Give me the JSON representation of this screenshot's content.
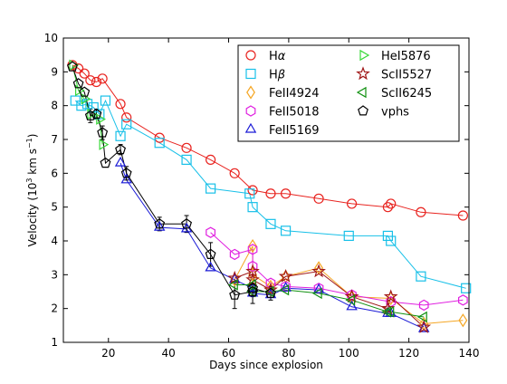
{
  "chart_data": {
    "type": "line",
    "title": "",
    "xlabel": "Days since explosion",
    "ylabel": "Velocity (10",
    "ylabel_exp": "3",
    "ylabel_unit": " km s",
    "ylabel_unit_exp": "−1",
    "ylabel_close": ")",
    "xlim": [
      5,
      140
    ],
    "ylim": [
      1,
      10
    ],
    "xticks": [
      20,
      40,
      60,
      80,
      100,
      120,
      140
    ],
    "yticks": [
      1,
      2,
      3,
      4,
      5,
      6,
      7,
      8,
      9,
      10
    ],
    "grid": false,
    "legend_placement": "top-right",
    "series": [
      {
        "name": "Hα",
        "label_main": "H",
        "label_greek": "α",
        "marker": "circle",
        "color": "#e8231f",
        "open": true,
        "x": [
          8,
          10,
          12,
          14,
          16,
          18,
          24,
          26,
          37,
          46,
          54,
          62,
          68,
          74,
          79,
          90,
          101,
          113,
          114,
          124,
          138
        ],
        "y": [
          9.2,
          9.1,
          8.95,
          8.75,
          8.7,
          8.8,
          8.05,
          7.65,
          7.05,
          6.75,
          6.4,
          6.0,
          5.5,
          5.4,
          5.4,
          5.25,
          5.1,
          5.0,
          5.1,
          4.85,
          4.75
        ]
      },
      {
        "name": "Hβ",
        "label_main": "H",
        "label_greek": "β",
        "marker": "square",
        "color": "#18c0e8",
        "open": true,
        "x": [
          9,
          11,
          13,
          15,
          17,
          19,
          24,
          26,
          37,
          46,
          54,
          67,
          68,
          74,
          79,
          100,
          113,
          114,
          124,
          139
        ],
        "y": [
          8.15,
          8.0,
          8.05,
          7.95,
          7.75,
          8.15,
          7.1,
          7.45,
          6.9,
          6.4,
          5.55,
          5.4,
          5.0,
          4.5,
          4.3,
          4.15,
          4.15,
          4.0,
          2.95,
          2.6
        ]
      },
      {
        "name": "FeII4924",
        "label_main": "FeII4924",
        "label_greek": "",
        "marker": "diamond",
        "color": "#f5a623",
        "open": true,
        "x": [
          62,
          68,
          68,
          74,
          79,
          90,
          101,
          114,
          125,
          138
        ],
        "y": [
          2.85,
          3.85,
          3.0,
          2.65,
          2.95,
          3.2,
          2.35,
          2.3,
          1.55,
          1.65
        ]
      },
      {
        "name": "FeII5018",
        "label_main": "FeII5018",
        "label_greek": "",
        "marker": "hexagon",
        "color": "#e020e0",
        "open": true,
        "x": [
          54,
          62,
          68,
          68,
          74,
          79,
          90,
          101,
          114,
          125,
          138
        ],
        "y": [
          4.25,
          3.6,
          3.75,
          3.25,
          2.75,
          2.65,
          2.6,
          2.4,
          2.2,
          2.1,
          2.25
        ]
      },
      {
        "name": "FeII5169",
        "label_main": "FeII5169",
        "label_greek": "",
        "marker": "triangle-up",
        "color": "#1a1ad6",
        "open": true,
        "x": [
          24,
          26,
          37,
          46,
          54,
          62,
          68,
          68,
          74,
          79,
          90,
          101,
          113,
          114,
          125
        ],
        "y": [
          6.3,
          5.8,
          4.4,
          4.35,
          3.2,
          2.85,
          2.6,
          2.45,
          2.4,
          2.6,
          2.55,
          2.05,
          1.85,
          1.85,
          1.4
        ]
      },
      {
        "name": "HeI5876",
        "label_main": "HeI5876",
        "label_greek": "",
        "marker": "triangle-right",
        "color": "#38d838",
        "open": true,
        "x": [
          8,
          10,
          12,
          14,
          17,
          18
        ],
        "y": [
          9.2,
          8.45,
          8.2,
          7.75,
          7.6,
          6.85
        ]
      },
      {
        "name": "ScII5527",
        "label_main": "ScII5527",
        "label_greek": "",
        "marker": "star",
        "color": "#a01818",
        "open": true,
        "x": [
          62,
          68,
          68,
          74,
          79,
          90,
          101,
          113,
          114,
          125
        ],
        "y": [
          2.9,
          3.1,
          2.85,
          2.55,
          2.95,
          3.1,
          2.35,
          2.0,
          2.35,
          1.45
        ]
      },
      {
        "name": "ScII6245",
        "label_main": "ScII6245",
        "label_greek": "",
        "marker": "triangle-left",
        "color": "#109010",
        "open": true,
        "x": [
          62,
          68,
          68,
          74,
          79,
          90,
          101,
          113,
          114,
          125
        ],
        "y": [
          2.7,
          2.7,
          2.5,
          2.5,
          2.55,
          2.45,
          2.25,
          1.9,
          1.9,
          1.75
        ]
      },
      {
        "name": "vphs",
        "label_main": "vphs",
        "label_greek": "",
        "marker": "pentagon",
        "color": "#000000",
        "open": true,
        "x": [
          8,
          10,
          12,
          14,
          16,
          18,
          19,
          24,
          26,
          37,
          46,
          54,
          62,
          68,
          68,
          74
        ],
        "y": [
          9.15,
          8.65,
          8.4,
          7.7,
          7.75,
          7.2,
          6.3,
          6.7,
          6.0,
          4.5,
          4.5,
          3.6,
          2.4,
          2.5,
          2.6,
          2.45
        ]
      }
    ],
    "error_bars": [
      {
        "x": 14,
        "y": 7.7,
        "err": 0.2
      },
      {
        "x": 16,
        "y": 7.75,
        "err": 0.15
      },
      {
        "x": 18,
        "y": 7.2,
        "err": 0.2
      },
      {
        "x": 24,
        "y": 6.7,
        "err": 0.15
      },
      {
        "x": 26,
        "y": 6.0,
        "err": 0.2
      },
      {
        "x": 37,
        "y": 4.5,
        "err": 0.2
      },
      {
        "x": 46,
        "y": 4.5,
        "err": 0.25
      },
      {
        "x": 54,
        "y": 3.6,
        "err": 0.35
      },
      {
        "x": 62,
        "y": 2.4,
        "err": 0.4
      },
      {
        "x": 68,
        "y": 2.5,
        "err": 0.35
      },
      {
        "x": 68,
        "y": 2.6,
        "err": 0.25
      },
      {
        "x": 74,
        "y": 2.45,
        "err": 0.2
      }
    ],
    "legend_columns": [
      [
        "Hα",
        "Hβ",
        "FeII4924",
        "FeII5018",
        "FeII5169"
      ],
      [
        "HeI5876",
        "ScII5527",
        "ScII6245",
        "vphs"
      ]
    ]
  }
}
